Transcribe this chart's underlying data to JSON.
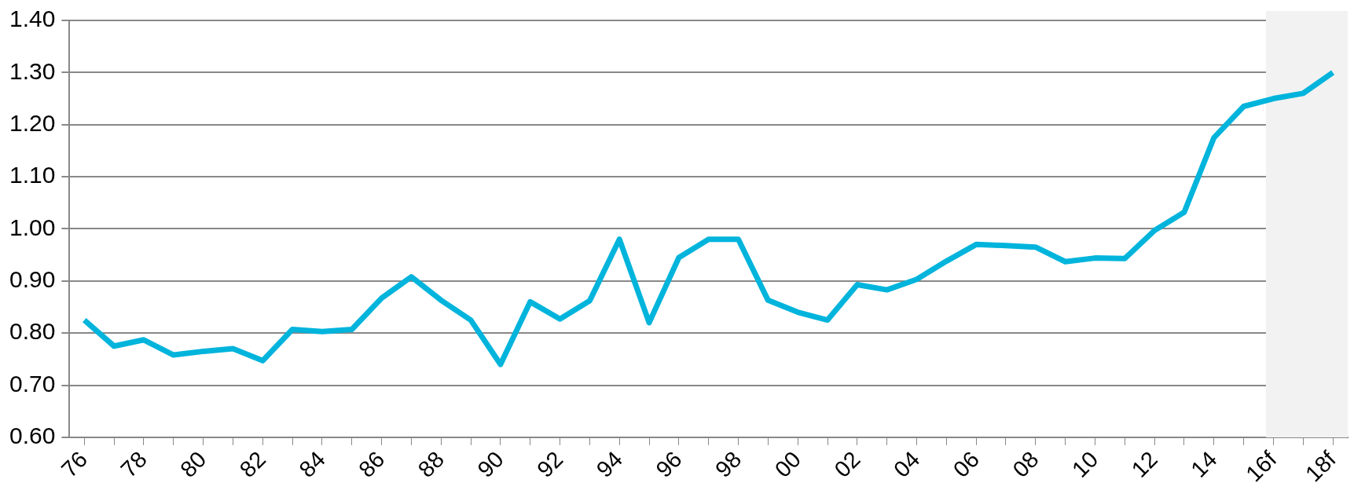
{
  "chart_data": {
    "type": "line",
    "categories": [
      "76",
      null,
      "78",
      null,
      "80",
      null,
      "82",
      null,
      "84",
      null,
      "86",
      null,
      "88",
      null,
      "90",
      null,
      "92",
      null,
      "94",
      null,
      "96",
      null,
      "98",
      null,
      "00",
      null,
      "02",
      null,
      "04",
      null,
      "06",
      null,
      "08",
      null,
      "10",
      null,
      "12",
      null,
      "14",
      null,
      "16f",
      null,
      "18f"
    ],
    "series": [
      {
        "color": "#00b4dc",
        "values": [
          0.825,
          0.775,
          0.787,
          0.758,
          0.765,
          0.77,
          0.747,
          0.807,
          0.803,
          0.807,
          0.867,
          0.908,
          0.863,
          0.825,
          0.74,
          0.86,
          0.827,
          0.862,
          0.98,
          0.82,
          0.945,
          0.98,
          0.98,
          0.863,
          0.84,
          0.825,
          0.893,
          0.883,
          0.903,
          0.938,
          0.97,
          0.968,
          0.965,
          0.937,
          0.944,
          0.943,
          0.997,
          1.032,
          1.175,
          1.235,
          1.25,
          1.26,
          1.3
        ]
      }
    ],
    "ylim": [
      0.6,
      1.4
    ],
    "yticks": [
      {
        "value": 0.6,
        "label": "0.60"
      },
      {
        "value": 0.7,
        "label": "0.70"
      },
      {
        "value": 0.8,
        "label": "0.80"
      },
      {
        "value": 0.9,
        "label": "0.90"
      },
      {
        "value": 1.0,
        "label": "1.00"
      },
      {
        "value": 1.1,
        "label": "1.10"
      },
      {
        "value": 1.2,
        "label": "1.20"
      },
      {
        "value": 1.3,
        "label": "1.30"
      },
      {
        "value": 1.4,
        "label": "1.40"
      }
    ],
    "bands": [
      {
        "axis": "x",
        "from": "16f",
        "to": "18f",
        "color": "#f2f2f2"
      }
    ],
    "grid": "y",
    "legend": false,
    "marker": "none",
    "line_style": "solid"
  }
}
